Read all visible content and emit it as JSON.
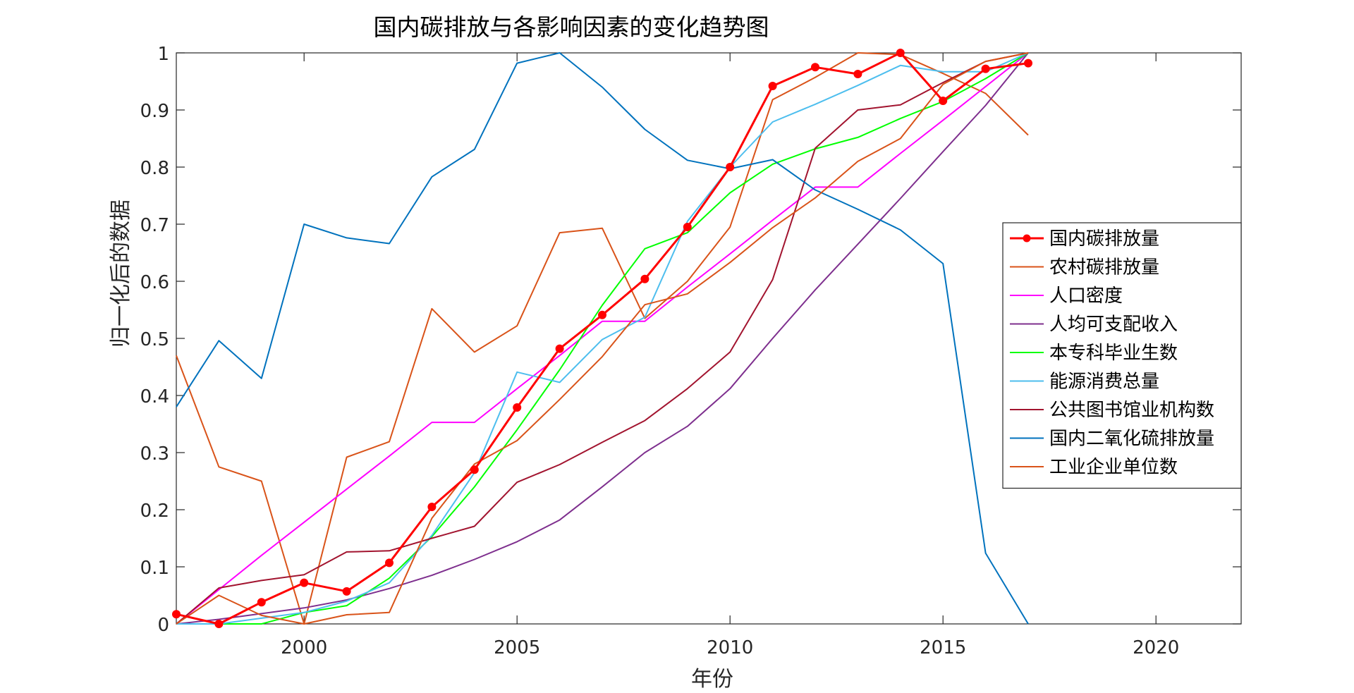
{
  "chart_data": {
    "type": "line",
    "title": "国内碳排放与各影响因素的变化趋势图",
    "xlabel": "年份",
    "ylabel": "归一化后的数据",
    "xlim": [
      1997,
      2022
    ],
    "ylim": [
      0,
      1
    ],
    "x_ticks": [
      2000,
      2005,
      2010,
      2015,
      2020
    ],
    "y_ticks": [
      0,
      0.1,
      0.2,
      0.3,
      0.4,
      0.5,
      0.6,
      0.7,
      0.8,
      0.9,
      1
    ],
    "y_tick_labels": [
      "0",
      "0.1",
      "0.2",
      "0.3",
      "0.4",
      "0.5",
      "0.6",
      "0.7",
      "0.8",
      "0.9",
      "1"
    ],
    "grid": false,
    "legend_position": "right",
    "x": [
      1997,
      1998,
      1999,
      2000,
      2001,
      2002,
      2003,
      2004,
      2005,
      2006,
      2007,
      2008,
      2009,
      2010,
      2011,
      2012,
      2013,
      2014,
      2015,
      2016,
      2017
    ],
    "series": [
      {
        "name": "国内碳排放量",
        "color": "#FF0000",
        "markers": true,
        "width": 3,
        "values": [
          0.017,
          0.0,
          0.038,
          0.072,
          0.057,
          0.107,
          0.205,
          0.27,
          0.379,
          0.482,
          0.541,
          0.604,
          0.695,
          0.8,
          0.942,
          0.975,
          0.963,
          1.0,
          0.916,
          0.972,
          0.982
        ]
      },
      {
        "name": "农村碳排放量",
        "color": "#D95319",
        "markers": false,
        "width": 2,
        "values": [
          0.47,
          0.275,
          0.25,
          0.0,
          0.292,
          0.319,
          0.552,
          0.476,
          0.522,
          0.685,
          0.693,
          0.535,
          0.6,
          0.695,
          0.918,
          0.957,
          1.0,
          0.997,
          0.964,
          0.929,
          0.856
        ]
      },
      {
        "name": "人口密度",
        "color": "#FF00FF",
        "markers": false,
        "width": 2,
        "values": [
          0.0,
          0.06,
          0.12,
          0.178,
          0.236,
          0.294,
          0.353,
          0.353,
          0.412,
          0.47,
          0.53,
          0.53,
          0.59,
          0.648,
          0.707,
          0.765,
          0.765,
          0.824,
          0.882,
          0.941,
          1.0
        ]
      },
      {
        "name": "人均可支配收入",
        "color": "#7E2F8E",
        "markers": false,
        "width": 2,
        "values": [
          0.0,
          0.008,
          0.018,
          0.028,
          0.042,
          0.062,
          0.085,
          0.113,
          0.144,
          0.182,
          0.24,
          0.3,
          0.346,
          0.412,
          0.5,
          0.585,
          0.665,
          0.745,
          0.827,
          0.908,
          1.0
        ]
      },
      {
        "name": "本专科毕业生数",
        "color": "#00FF00",
        "markers": false,
        "width": 2,
        "values": [
          0.0,
          0.0,
          0.0,
          0.02,
          0.032,
          0.08,
          0.153,
          0.24,
          0.34,
          0.445,
          0.558,
          0.657,
          0.685,
          0.755,
          0.805,
          0.832,
          0.852,
          0.885,
          0.915,
          0.955,
          1.0
        ]
      },
      {
        "name": "能源消费总量",
        "color": "#4DBEEE",
        "markers": false,
        "width": 2,
        "values": [
          0.0,
          0.0,
          0.01,
          0.02,
          0.04,
          0.072,
          0.155,
          0.265,
          0.441,
          0.423,
          0.498,
          0.537,
          0.705,
          0.8,
          0.879,
          0.91,
          0.943,
          0.978,
          0.967,
          0.967,
          1.0
        ]
      },
      {
        "name": "公共图书馆业机构数",
        "color": "#A2142F",
        "markers": false,
        "width": 2,
        "values": [
          0.0,
          0.063,
          0.076,
          0.086,
          0.126,
          0.128,
          0.15,
          0.171,
          0.248,
          0.279,
          0.318,
          0.356,
          0.412,
          0.476,
          0.603,
          0.833,
          0.9,
          0.909,
          0.948,
          0.985,
          1.0
        ]
      },
      {
        "name": "国内二氧化硫排放量",
        "color": "#0072BD",
        "markers": false,
        "width": 2,
        "values": [
          0.38,
          0.496,
          0.43,
          0.7,
          0.676,
          0.666,
          0.783,
          0.831,
          0.982,
          1.0,
          0.94,
          0.866,
          0.812,
          0.797,
          0.813,
          0.76,
          0.726,
          0.69,
          0.631,
          0.124,
          0.0
        ]
      },
      {
        "name": "工业企业单位数",
        "color": "#D95319",
        "markers": false,
        "width": 2,
        "values": [
          0.0,
          0.05,
          0.015,
          0.0,
          0.016,
          0.02,
          0.185,
          0.28,
          0.321,
          0.393,
          0.468,
          0.559,
          0.578,
          0.633,
          0.694,
          0.746,
          0.81,
          0.85,
          0.945,
          0.985,
          1.0
        ]
      }
    ]
  }
}
